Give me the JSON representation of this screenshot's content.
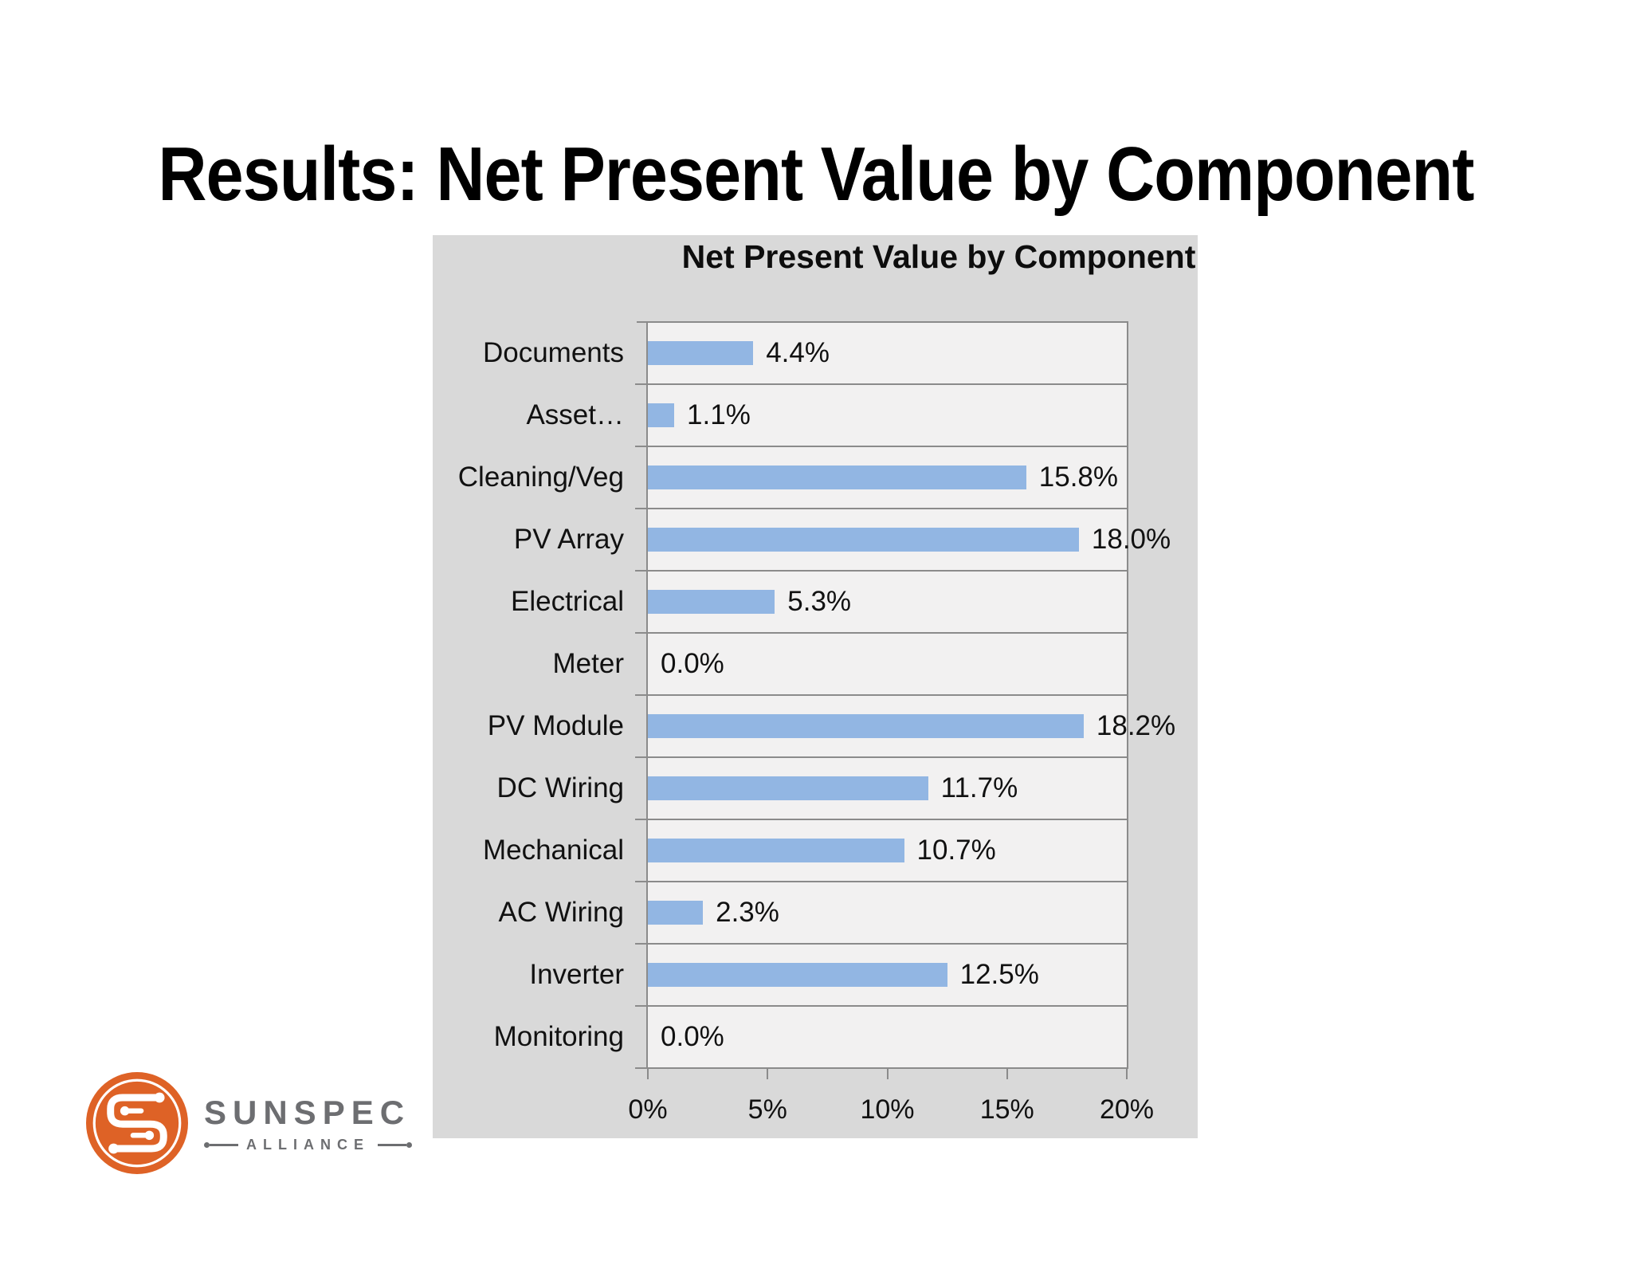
{
  "slide": {
    "title": "Results: Net Present Value by Component"
  },
  "chart_data": {
    "type": "bar",
    "orientation": "horizontal",
    "title": "Net Present Value by Component",
    "categories": [
      "Documents",
      "Asset…",
      "Cleaning/Veg",
      "PV Array",
      "Electrical",
      "Meter",
      "PV Module",
      "DC Wiring",
      "Mechanical",
      "AC Wiring",
      "Inverter",
      "Monitoring"
    ],
    "values": [
      4.4,
      1.1,
      15.8,
      18.0,
      5.3,
      0.0,
      18.2,
      11.7,
      10.7,
      2.3,
      12.5,
      0.0
    ],
    "value_labels": [
      "4.4%",
      "1.1%",
      "15.8%",
      "18.0%",
      "5.3%",
      "0.0%",
      "18.2%",
      "11.7%",
      "10.7%",
      "2.3%",
      "12.5%",
      "0.0%"
    ],
    "xlabel": "",
    "ylabel": "",
    "xlim": [
      0,
      20
    ],
    "x_ticks": [
      "0%",
      "5%",
      "10%",
      "15%",
      "20%"
    ],
    "grid": "category separator lines only",
    "legend": "none",
    "bar_color": "#92B6E3",
    "plot_bg": "#F2F1F1",
    "panel_bg": "#D9D9D9",
    "line_color": "#8B8B8B"
  },
  "logo": {
    "name": "SunSpec Alliance logo",
    "primary_text": "SUNSPEC",
    "secondary_text": "ALLIANCE",
    "orange": "#DE6226",
    "gray": "#6D6E71"
  }
}
